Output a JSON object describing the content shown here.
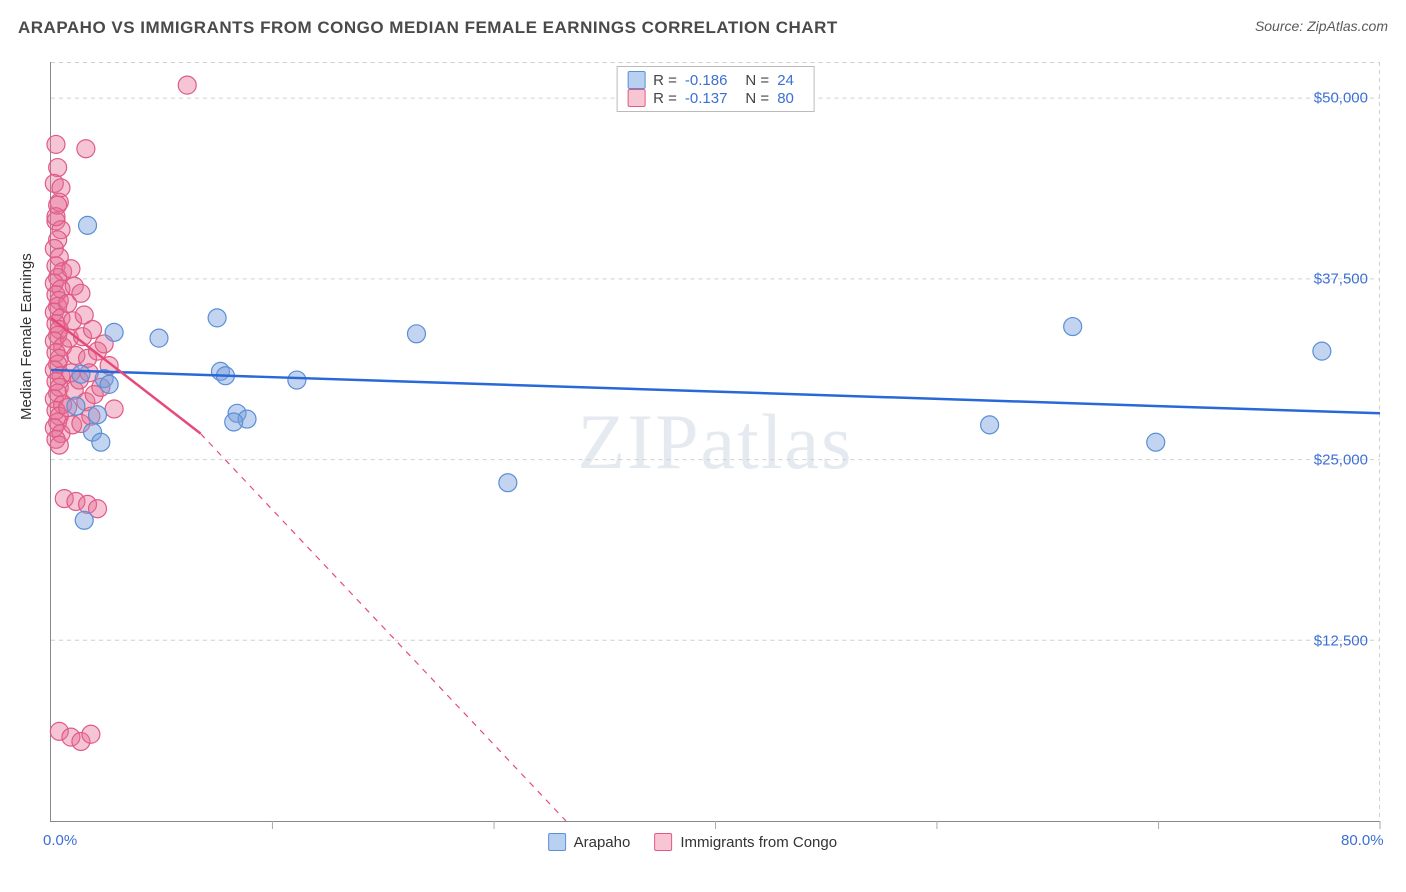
{
  "title": "ARAPAHO VS IMMIGRANTS FROM CONGO MEDIAN FEMALE EARNINGS CORRELATION CHART",
  "source": "Source: ZipAtlas.com",
  "watermark": "ZIPatlas",
  "y_axis_label": "Median Female Earnings",
  "chart": {
    "type": "scatter",
    "xlim": [
      0,
      80
    ],
    "ylim": [
      0,
      52500
    ],
    "x_ticks": [
      0,
      13.33,
      26.67,
      40,
      53.33,
      66.67,
      80
    ],
    "x_tick_labels_shown": {
      "0": "0.0%",
      "80": "80.0%"
    },
    "y_ticks": [
      12500,
      25000,
      37500,
      50000
    ],
    "y_tick_labels": [
      "$12,500",
      "$25,000",
      "$37,500",
      "$50,000"
    ],
    "grid_color": "#d0d0d0",
    "background_color": "#ffffff",
    "plot_border_color": "#888888"
  },
  "series": [
    {
      "name": "Arapaho",
      "swatch_fill": "#b9d1f0",
      "swatch_stroke": "#5a8fd6",
      "marker_fill": "rgba(120,160,220,0.45)",
      "marker_stroke": "#5a8fd6",
      "marker_radius": 9,
      "line_color": "#2968d8",
      "line_width": 2.5,
      "trend": {
        "x1": 0,
        "y1": 31200,
        "x2": 80,
        "y2": 28200
      },
      "stats": {
        "R_label": "R =",
        "R": "-0.186",
        "N_label": "N =",
        "N": "24"
      },
      "points": [
        [
          2.2,
          41200
        ],
        [
          3.8,
          33800
        ],
        [
          3.2,
          30600
        ],
        [
          3.5,
          30200
        ],
        [
          1.8,
          30900
        ],
        [
          1.5,
          28700
        ],
        [
          2.8,
          28100
        ],
        [
          2.5,
          26900
        ],
        [
          3.0,
          26200
        ],
        [
          2.0,
          20800
        ],
        [
          6.5,
          33400
        ],
        [
          10.0,
          34800
        ],
        [
          10.2,
          31100
        ],
        [
          10.5,
          30800
        ],
        [
          14.8,
          30500
        ],
        [
          11.2,
          28200
        ],
        [
          11.8,
          27800
        ],
        [
          11.0,
          27600
        ],
        [
          22.0,
          33700
        ],
        [
          27.5,
          23400
        ],
        [
          56.5,
          27400
        ],
        [
          61.5,
          34200
        ],
        [
          66.5,
          26200
        ],
        [
          76.5,
          32500
        ]
      ]
    },
    {
      "name": "Immigrants from Congo",
      "swatch_fill": "#f8c6d3",
      "swatch_stroke": "#e05a85",
      "marker_fill": "rgba(230,110,150,0.40)",
      "marker_stroke": "#e05a85",
      "marker_radius": 9,
      "line_color": "#e64a7b",
      "line_width": 2.5,
      "trend_solid": {
        "x1": 0,
        "y1": 34800,
        "x2": 9.0,
        "y2": 26800
      },
      "trend_dashed": {
        "x1": 9.0,
        "y1": 26800,
        "x2": 31.0,
        "y2": 0
      },
      "stats": {
        "R_label": "R =",
        "R": "-0.137",
        "N_label": "N =",
        "N": "80"
      },
      "points": [
        [
          0.3,
          46800
        ],
        [
          2.1,
          46500
        ],
        [
          0.4,
          45200
        ],
        [
          0.2,
          44100
        ],
        [
          0.5,
          42800
        ],
        [
          0.3,
          41500
        ],
        [
          0.6,
          40900
        ],
        [
          0.4,
          40200
        ],
        [
          0.2,
          39600
        ],
        [
          0.5,
          39000
        ],
        [
          0.3,
          38400
        ],
        [
          0.7,
          38000
        ],
        [
          0.4,
          37600
        ],
        [
          0.2,
          37200
        ],
        [
          0.6,
          36800
        ],
        [
          0.3,
          36400
        ],
        [
          0.5,
          36000
        ],
        [
          0.4,
          35600
        ],
        [
          0.2,
          35200
        ],
        [
          0.6,
          34800
        ],
        [
          0.3,
          34400
        ],
        [
          0.5,
          34000
        ],
        [
          0.4,
          33600
        ],
        [
          0.2,
          33200
        ],
        [
          0.7,
          32800
        ],
        [
          0.3,
          32400
        ],
        [
          0.5,
          32000
        ],
        [
          0.4,
          31600
        ],
        [
          0.2,
          31200
        ],
        [
          0.6,
          30800
        ],
        [
          0.3,
          30400
        ],
        [
          0.5,
          30000
        ],
        [
          0.4,
          29600
        ],
        [
          0.2,
          29200
        ],
        [
          0.7,
          28800
        ],
        [
          0.3,
          28400
        ],
        [
          0.5,
          28000
        ],
        [
          0.4,
          27600
        ],
        [
          0.2,
          27200
        ],
        [
          0.6,
          26800
        ],
        [
          0.3,
          26400
        ],
        [
          0.5,
          26000
        ],
        [
          1.2,
          38200
        ],
        [
          1.4,
          37000
        ],
        [
          1.0,
          35800
        ],
        [
          1.3,
          34600
        ],
        [
          1.1,
          33400
        ],
        [
          1.5,
          32200
        ],
        [
          1.2,
          31000
        ],
        [
          1.4,
          29800
        ],
        [
          1.0,
          28600
        ],
        [
          1.3,
          27400
        ],
        [
          1.8,
          36500
        ],
        [
          2.0,
          35000
        ],
        [
          1.9,
          33500
        ],
        [
          2.2,
          32000
        ],
        [
          1.7,
          30500
        ],
        [
          2.1,
          29000
        ],
        [
          1.8,
          27500
        ],
        [
          2.5,
          34000
        ],
        [
          2.8,
          32500
        ],
        [
          2.3,
          31000
        ],
        [
          2.6,
          29500
        ],
        [
          2.4,
          28000
        ],
        [
          3.2,
          33000
        ],
        [
          3.5,
          31500
        ],
        [
          3.0,
          30000
        ],
        [
          3.8,
          28500
        ],
        [
          0.8,
          22300
        ],
        [
          1.5,
          22100
        ],
        [
          2.2,
          21900
        ],
        [
          2.8,
          21600
        ],
        [
          0.5,
          6200
        ],
        [
          1.2,
          5800
        ],
        [
          1.8,
          5500
        ],
        [
          2.4,
          6000
        ],
        [
          8.2,
          50900
        ],
        [
          0.6,
          43800
        ],
        [
          0.4,
          42600
        ],
        [
          0.3,
          41800
        ]
      ]
    }
  ]
}
